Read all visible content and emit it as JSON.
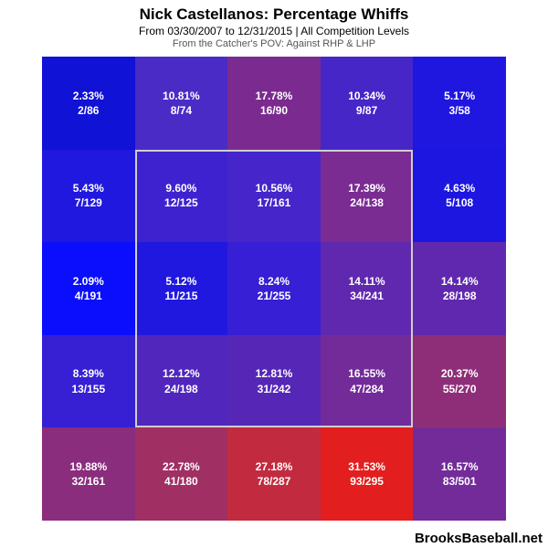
{
  "title": "Nick Castellanos: Percentage Whiffs",
  "subtitle": "From 03/30/2007 to 12/31/2015 | All Competition Levels",
  "subsub": "From the Catcher's POV:   Against RHP & LHP",
  "attribution": "BrooksBaseball.net",
  "chart": {
    "type": "heatmap",
    "rows": 5,
    "cols": 5,
    "background_color": "#000000",
    "text_color": "#ffffff",
    "font_size_cell": 12,
    "font_weight_cell": "bold",
    "strike_zone_border_color": "#cfcfcf",
    "strike_zone_border_width": 2,
    "cells": [
      [
        {
          "pct": "2.33%",
          "frac": "2/86",
          "color": "#1012d6"
        },
        {
          "pct": "10.81%",
          "frac": "8/74",
          "color": "#4a2bc6"
        },
        {
          "pct": "17.78%",
          "frac": "16/90",
          "color": "#7b2b8f"
        },
        {
          "pct": "10.34%",
          "frac": "9/87",
          "color": "#4726c8"
        },
        {
          "pct": "5.17%",
          "frac": "3/58",
          "color": "#1f16e0"
        }
      ],
      [
        {
          "pct": "5.43%",
          "frac": "7/129",
          "color": "#2018de"
        },
        {
          "pct": "9.60%",
          "frac": "12/125",
          "color": "#3f22cf"
        },
        {
          "pct": "10.56%",
          "frac": "17/161",
          "color": "#4625cb"
        },
        {
          "pct": "17.39%",
          "frac": "24/138",
          "color": "#7a2c92"
        },
        {
          "pct": "4.63%",
          "frac": "5/108",
          "color": "#1c16e0"
        }
      ],
      [
        {
          "pct": "2.09%",
          "frac": "4/191",
          "color": "#0a0efc"
        },
        {
          "pct": "5.12%",
          "frac": "11/215",
          "color": "#2018de"
        },
        {
          "pct": "8.24%",
          "frac": "21/255",
          "color": "#361fd4"
        },
        {
          "pct": "14.11%",
          "frac": "34/241",
          "color": "#6028ae"
        },
        {
          "pct": "14.14%",
          "frac": "28/198",
          "color": "#6028ae"
        }
      ],
      [
        {
          "pct": "8.39%",
          "frac": "13/155",
          "color": "#371fd3"
        },
        {
          "pct": "12.12%",
          "frac": "24/198",
          "color": "#5126bc"
        },
        {
          "pct": "12.81%",
          "frac": "31/242",
          "color": "#5627b7"
        },
        {
          "pct": "16.55%",
          "frac": "47/284",
          "color": "#732b99"
        },
        {
          "pct": "20.37%",
          "frac": "55/270",
          "color": "#8f2e78"
        }
      ],
      [
        {
          "pct": "19.88%",
          "frac": "32/161",
          "color": "#8a2d7d"
        },
        {
          "pct": "22.78%",
          "frac": "41/180",
          "color": "#a02f63"
        },
        {
          "pct": "27.18%",
          "frac": "78/287",
          "color": "#c22b3f"
        },
        {
          "pct": "31.53%",
          "frac": "93/295",
          "color": "#e31e1e"
        },
        {
          "pct": "16.57%",
          "frac": "83/501",
          "color": "#732b99"
        }
      ]
    ]
  }
}
